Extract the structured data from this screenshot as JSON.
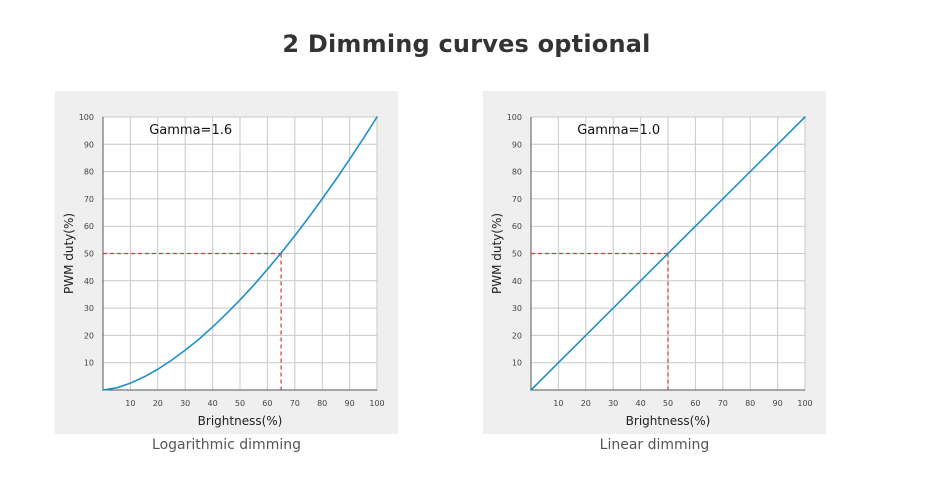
{
  "page": {
    "title": "2 Dimming curves optional"
  },
  "chart_data": [
    {
      "type": "line",
      "caption": "Logarithmic dimming",
      "annotation": "Gamma=1.6",
      "gamma": 1.6,
      "xlabel": "Brightness(%)",
      "ylabel": "PWM duty(%)",
      "xlim": [
        0,
        100
      ],
      "ylim": [
        0,
        100
      ],
      "x_ticks": [
        10,
        20,
        30,
        40,
        50,
        60,
        70,
        80,
        90,
        100
      ],
      "y_ticks": [
        10,
        20,
        30,
        40,
        50,
        60,
        70,
        80,
        90,
        100
      ],
      "grid": true,
      "line_color": "#1e90c8",
      "marker_color": "#d9363e",
      "x": [
        0,
        5,
        10,
        15,
        20,
        25,
        30,
        35,
        40,
        45,
        50,
        55,
        60,
        65,
        70,
        75,
        80,
        85,
        90,
        95,
        100
      ],
      "y": [
        0,
        0.8,
        2.5,
        4.8,
        7.6,
        10.9,
        14.6,
        18.6,
        23.1,
        27.9,
        33,
        38.4,
        44.2,
        50.2,
        56.5,
        63.1,
        70,
        77.1,
        84.5,
        92.1,
        100
      ],
      "reference_point": {
        "x": 65,
        "y": 50
      }
    },
    {
      "type": "line",
      "caption": "Linear dimming",
      "annotation": "Gamma=1.0",
      "gamma": 1.0,
      "xlabel": "Brightness(%)",
      "ylabel": "PWM duty(%)",
      "xlim": [
        0,
        100
      ],
      "ylim": [
        0,
        100
      ],
      "x_ticks": [
        10,
        20,
        30,
        40,
        50,
        60,
        70,
        80,
        90,
        100
      ],
      "y_ticks": [
        10,
        20,
        30,
        40,
        50,
        60,
        70,
        80,
        90,
        100
      ],
      "grid": true,
      "line_color": "#1e90c8",
      "marker_color": "#d9363e",
      "x": [
        0,
        100
      ],
      "y": [
        0,
        100
      ],
      "reference_point": {
        "x": 50,
        "y": 50
      }
    }
  ]
}
